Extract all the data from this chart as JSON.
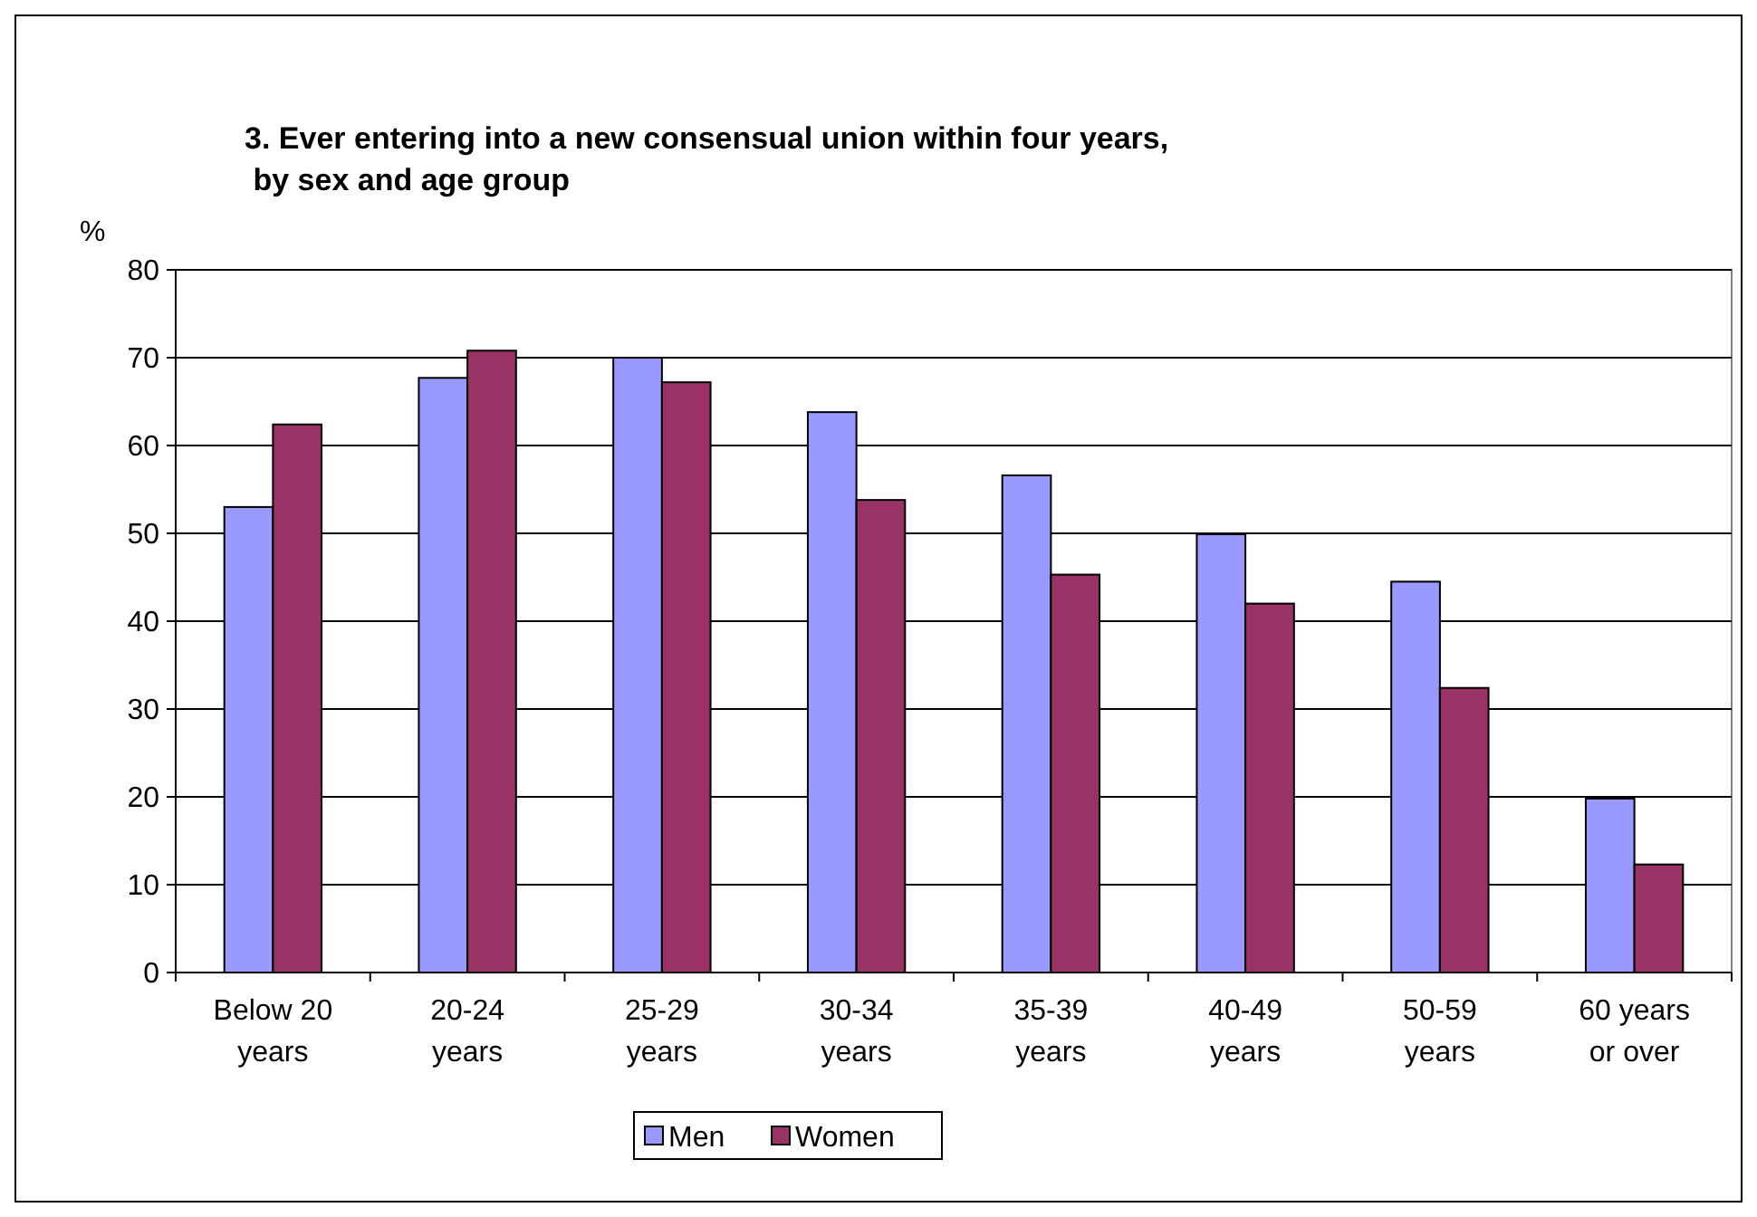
{
  "chart_data": {
    "type": "bar",
    "title": "3. Ever entering into a new consensual union within four years,\n by sex and age group",
    "ylabel": "%",
    "categories": [
      "Below 20\nyears",
      "20-24\nyears",
      "25-29\nyears",
      "30-34\nyears",
      "35-39\nyears",
      "40-49\nyears",
      "50-59\nyears",
      "60 years\nor over"
    ],
    "series": [
      {
        "name": "Men",
        "color": "#9999ff",
        "values": [
          53,
          67.7,
          70,
          63.8,
          56.6,
          49.9,
          44.5,
          19.8
        ]
      },
      {
        "name": "Women",
        "color": "#993366",
        "values": [
          62.4,
          70.8,
          67.2,
          53.8,
          45.3,
          42,
          32.4,
          12.3
        ]
      }
    ],
    "ylim": [
      0,
      80
    ],
    "yticks": [
      0,
      10,
      20,
      30,
      40,
      50,
      60,
      70,
      80
    ],
    "grid": "y",
    "legend": "bottom"
  }
}
